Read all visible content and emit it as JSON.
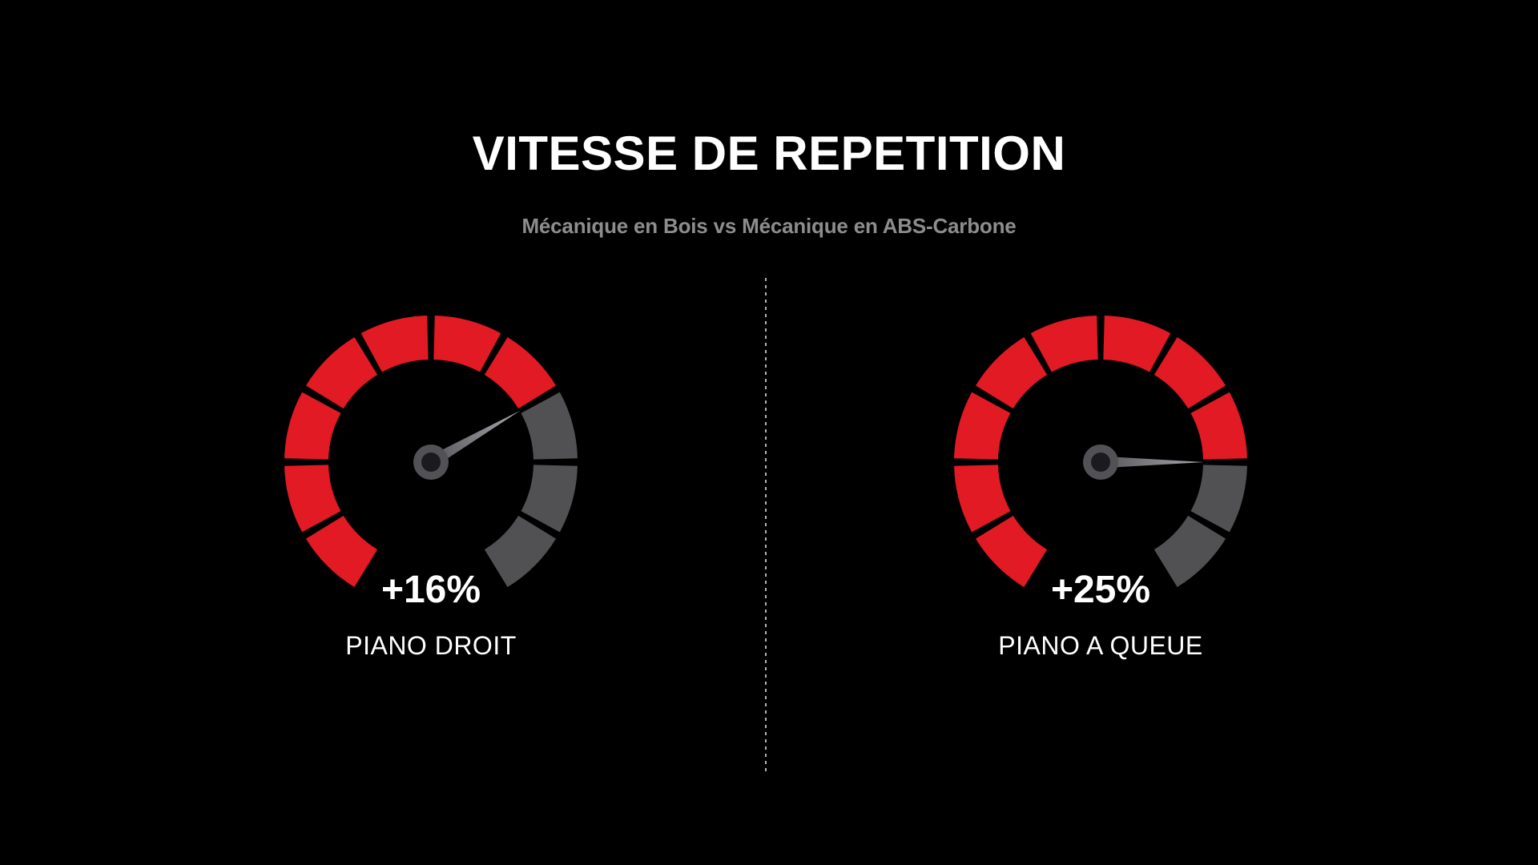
{
  "header": {
    "title": "VITESSE DE REPETITION",
    "subtitle": "Mécanique en Bois vs Mécanique en ABS-Carbone"
  },
  "chart_data": [
    {
      "type": "gauge",
      "label": "PIANO DROIT",
      "value_label": "+16%",
      "value_percent": 16,
      "segments_total": 10,
      "segments_filled": 7,
      "arc_start_deg": 240,
      "arc_end_deg": -60,
      "needle_angle_deg": 30
    },
    {
      "type": "gauge",
      "label": "PIANO A QUEUE",
      "value_label": "+25%",
      "value_percent": 25,
      "segments_total": 10,
      "segments_filled": 8,
      "arc_start_deg": 240,
      "arc_end_deg": -60,
      "needle_angle_deg": 0
    }
  ],
  "colors": {
    "background": "#000000",
    "title_text": "#ffffff",
    "subtitle_text": "#8d8d8d",
    "value_text": "#ffffff",
    "label_text": "#ffffff",
    "segment_filled": "#e11a24",
    "segment_empty": "#515153",
    "needle_base": "#55555a",
    "needle_tip": "#a8a8ac",
    "hub": "#515156",
    "hub_center": "#1b1b1f",
    "divider_dots": "#b3b3b3"
  }
}
